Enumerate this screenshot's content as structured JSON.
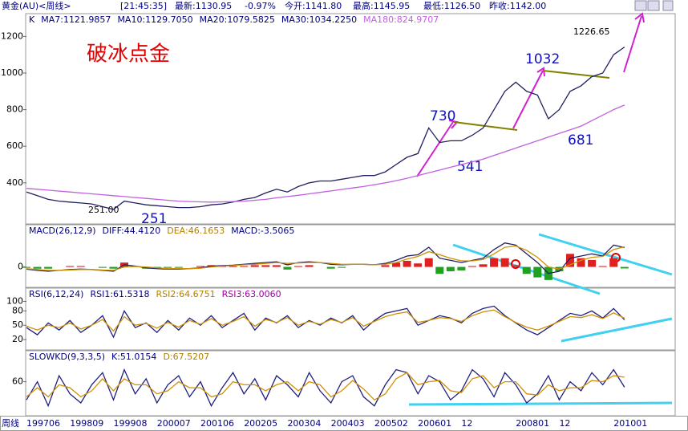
{
  "header": [
    "黄金(AU)<周线>",
    "[21:45:35]",
    "最新:1130.95",
    "-0.97%",
    "今开:1141.80",
    "最高:1145.95",
    "最低:1126.50",
    "昨收:1142.00"
  ],
  "period_label": "周线",
  "annotations": {
    "title": "破冰点金",
    "a730": "730",
    "a1032": "1032",
    "a541": "541",
    "a681": "681",
    "a251": "251",
    "a251b": "251.00",
    "a1226": "1226.65"
  },
  "chart_data": [
    {
      "type": "line",
      "legend": [
        {
          "text": "K",
          "color": "#000080"
        },
        {
          "text": "MA7:1121.9857",
          "color": "#000080"
        },
        {
          "text": "MA10:1129.7050",
          "color": "#000080"
        },
        {
          "text": "MA20:1079.5825",
          "color": "#000080"
        },
        {
          "text": "MA30:1034.2250",
          "color": "#000080"
        },
        {
          "text": "MA180:824.9707",
          "color": "#c060e0"
        }
      ],
      "categories": [
        "199706",
        null,
        null,
        null,
        "199809",
        null,
        null,
        null,
        "199908",
        null,
        null,
        null,
        "200007",
        null,
        null,
        null,
        "200106",
        null,
        null,
        null,
        "200205",
        null,
        null,
        null,
        "200304",
        null,
        null,
        null,
        "200403",
        null,
        null,
        null,
        "200502",
        null,
        null,
        null,
        "200601",
        null,
        null,
        null,
        "12",
        null,
        null,
        null,
        null,
        "200801",
        null,
        null,
        null,
        "12",
        null,
        null,
        null,
        null,
        "201001",
        null
      ],
      "ylim": [
        180,
        1320
      ],
      "yticks": [
        400,
        600,
        800,
        1000,
        1200
      ],
      "series": [
        {
          "color": "#202060",
          "values": [
            350,
            330,
            310,
            300,
            295,
            290,
            285,
            270,
            255,
            300,
            290,
            280,
            275,
            270,
            265,
            265,
            270,
            280,
            285,
            295,
            310,
            320,
            345,
            365,
            350,
            380,
            400,
            410,
            410,
            420,
            430,
            440,
            440,
            460,
            500,
            540,
            560,
            700,
            620,
            630,
            630,
            660,
            700,
            800,
            900,
            950,
            900,
            880,
            750,
            800,
            900,
            930,
            980,
            1000,
            1100,
            1142
          ]
        },
        {
          "color": "#c060e0",
          "values": [
            370,
            365,
            360,
            355,
            350,
            345,
            340,
            335,
            330,
            325,
            320,
            315,
            310,
            305,
            300,
            298,
            296,
            295,
            296,
            298,
            300,
            305,
            310,
            318,
            325,
            332,
            340,
            348,
            356,
            364,
            372,
            380,
            390,
            400,
            412,
            425,
            440,
            455,
            470,
            485,
            500,
            515,
            530,
            550,
            570,
            590,
            610,
            630,
            650,
            670,
            690,
            710,
            740,
            770,
            800,
            825
          ]
        }
      ]
    },
    {
      "type": "line",
      "legend": [
        {
          "text": "MACD(26,12,9)",
          "color": "#000080"
        },
        {
          "text": "DIFF:44.4120",
          "color": "#000080"
        },
        {
          "text": "DEA:46.1653",
          "color": "#b08000"
        },
        {
          "text": "MACD:-3.5065",
          "color": "#000080"
        }
      ],
      "ylim": [
        -45,
        95
      ],
      "yticks": [
        0
      ],
      "bars": {
        "up_color": "#e02020",
        "down_color": "#20a020",
        "values": [
          -2,
          -4,
          -4,
          0,
          2,
          2,
          0,
          -2,
          -4,
          10,
          2,
          -4,
          -4,
          -2,
          -2,
          0,
          2,
          4,
          2,
          2,
          2,
          4,
          4,
          4,
          -6,
          2,
          4,
          0,
          -4,
          -2,
          0,
          0,
          0,
          4,
          10,
          14,
          8,
          20,
          -16,
          -10,
          -8,
          2,
          6,
          20,
          20,
          4,
          -16,
          -24,
          -30,
          -10,
          30,
          20,
          16,
          2,
          20,
          -3.5065
        ]
      },
      "series": [
        {
          "color": "#202060",
          "values": [
            -5,
            -8,
            -10,
            -8,
            -6,
            -5,
            -6,
            -8,
            -10,
            5,
            2,
            -2,
            -4,
            -5,
            -5,
            -4,
            -2,
            2,
            3,
            4,
            6,
            8,
            10,
            12,
            5,
            10,
            12,
            10,
            6,
            5,
            6,
            6,
            5,
            8,
            15,
            25,
            28,
            45,
            20,
            15,
            10,
            15,
            20,
            40,
            55,
            50,
            30,
            10,
            -15,
            -10,
            20,
            25,
            30,
            25,
            50,
            44.412
          ]
        },
        {
          "color": "#d09000",
          "values": [
            -4,
            -6,
            -8,
            -8,
            -7,
            -6,
            -6,
            -7,
            -8,
            0,
            1,
            0,
            -2,
            -4,
            -4,
            -4,
            -3,
            0,
            2,
            3,
            5,
            6,
            8,
            10,
            8,
            9,
            10,
            10,
            8,
            6,
            6,
            6,
            5,
            6,
            10,
            18,
            24,
            35,
            28,
            20,
            14,
            14,
            17,
            30,
            45,
            48,
            38,
            22,
            0,
            -5,
            5,
            15,
            22,
            24,
            40,
            46.1653
          ]
        }
      ]
    },
    {
      "type": "line",
      "legend": [
        {
          "text": "RSI(6,12,24)",
          "color": "#000080"
        },
        {
          "text": "RSI1:61.5318",
          "color": "#000080"
        },
        {
          "text": "RSI2:64.6751",
          "color": "#b08000"
        },
        {
          "text": "RSI3:63.0060",
          "color": "#a000a0"
        }
      ],
      "ylim": [
        0,
        126
      ],
      "yticks": [
        20,
        50,
        80,
        100
      ],
      "series": [
        {
          "color": "#202080",
          "values": [
            45,
            30,
            55,
            40,
            60,
            35,
            50,
            70,
            25,
            80,
            45,
            55,
            35,
            60,
            40,
            65,
            50,
            70,
            45,
            60,
            75,
            40,
            65,
            55,
            70,
            45,
            60,
            50,
            65,
            55,
            70,
            40,
            60,
            75,
            80,
            85,
            50,
            60,
            70,
            65,
            55,
            75,
            85,
            90,
            70,
            55,
            40,
            30,
            45,
            60,
            75,
            70,
            80,
            65,
            85,
            61.5318
          ]
        },
        {
          "color": "#d09000",
          "values": [
            48,
            40,
            50,
            45,
            55,
            42,
            50,
            62,
            38,
            68,
            50,
            54,
            44,
            56,
            46,
            60,
            52,
            64,
            50,
            58,
            68,
            48,
            62,
            56,
            66,
            50,
            58,
            52,
            62,
            56,
            66,
            48,
            58,
            68,
            74,
            78,
            56,
            60,
            66,
            64,
            58,
            70,
            78,
            82,
            68,
            56,
            46,
            40,
            48,
            58,
            68,
            66,
            72,
            64,
            76,
            64.6751
          ]
        }
      ]
    },
    {
      "type": "line",
      "legend": [
        {
          "text": "SLOWKD(9,3,3,5)",
          "color": "#000080"
        },
        {
          "text": "K:51.0154",
          "color": "#000080"
        },
        {
          "text": "D:67.5207",
          "color": "#b08000"
        }
      ],
      "ylim": [
        5,
        110
      ],
      "yticks": [
        60
      ],
      "series": [
        {
          "color": "#202080",
          "values": [
            30,
            60,
            20,
            70,
            40,
            25,
            55,
            75,
            30,
            80,
            40,
            65,
            25,
            55,
            70,
            35,
            60,
            20,
            50,
            75,
            40,
            65,
            30,
            70,
            55,
            35,
            75,
            45,
            25,
            60,
            70,
            35,
            20,
            55,
            80,
            75,
            40,
            70,
            60,
            30,
            45,
            80,
            65,
            35,
            75,
            55,
            25,
            40,
            70,
            30,
            60,
            45,
            75,
            55,
            80,
            51.0154
          ]
        },
        {
          "color": "#d09000",
          "values": [
            35,
            50,
            35,
            55,
            50,
            35,
            45,
            65,
            45,
            65,
            55,
            55,
            40,
            45,
            60,
            50,
            50,
            35,
            40,
            60,
            55,
            55,
            45,
            55,
            60,
            45,
            60,
            55,
            35,
            45,
            62,
            48,
            30,
            40,
            65,
            75,
            55,
            60,
            62,
            45,
            42,
            65,
            70,
            50,
            60,
            60,
            40,
            38,
            55,
            45,
            50,
            50,
            62,
            60,
            70,
            67.5207
          ]
        }
      ]
    }
  ]
}
